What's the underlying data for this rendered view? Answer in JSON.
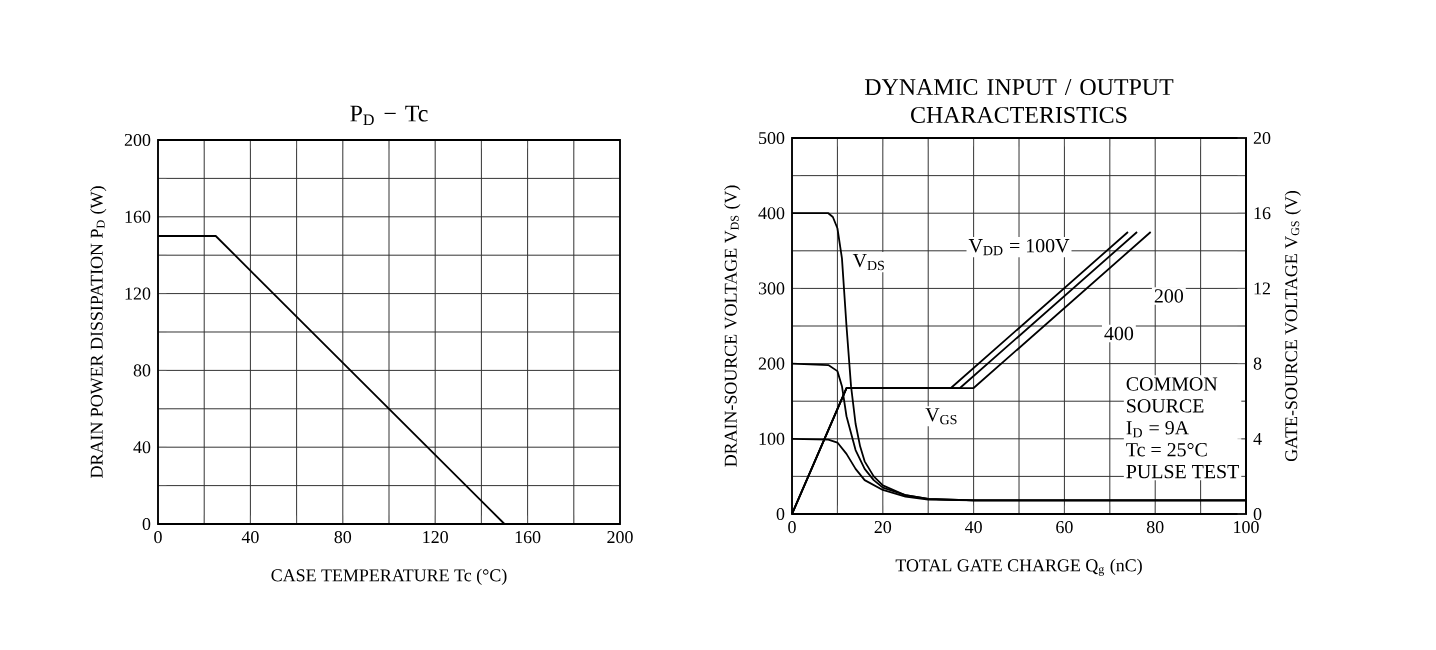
{
  "chart_data": [
    {
      "type": "line",
      "title": "P$_{D}$ − Tc",
      "xlabel": "CASE TEMPERATURE  Tc  (°C)",
      "ylabel": "DRAIN POWER DISSIPATION  P$_{D}$  (W)",
      "series": [
        {
          "color": "#000000",
          "x": [
            0,
            25,
            150
          ],
          "values": [
            150,
            150,
            0
          ]
        }
      ],
      "xlim": [
        0,
        200
      ],
      "ylim": [
        0,
        200
      ],
      "xticks": [
        0,
        {
          "value": 20,
          "label": null
        },
        40,
        {
          "value": 60,
          "label": null
        },
        80,
        {
          "value": 100,
          "label": null
        },
        120,
        {
          "value": 140,
          "label": null
        },
        160,
        {
          "value": 180,
          "label": null
        },
        200
      ],
      "yticks": [
        0,
        {
          "value": 20,
          "label": null
        },
        40,
        {
          "value": 60,
          "label": null
        },
        80,
        {
          "value": 100,
          "label": null
        },
        120,
        {
          "value": 140,
          "label": null
        },
        160,
        {
          "value": 180,
          "label": null
        },
        200
      ],
      "grid": true,
      "marker": "none"
    },
    {
      "type": "line",
      "title": "DYNAMIC INPUT / OUTPUT CHARACTERISTICS",
      "xlabel": "TOTAL GATE CHARGE  Q$_{g}$  (nC)",
      "ylabel": "DRAIN-SOURCE VOLTAGE  V$_{DS}$  (V)",
      "y2label": "GATE-SOURCE VOLTAGE  V$_{GS}$  (V)",
      "series": [
        {
          "color": "#000000",
          "x": [
            0,
            8,
            9,
            10,
            11,
            12,
            13,
            14,
            15,
            16,
            18,
            20,
            25,
            30,
            40,
            100
          ],
          "values": [
            400,
            400,
            395,
            380,
            340,
            250,
            170,
            120,
            90,
            70,
            50,
            38,
            25,
            20,
            18,
            18
          ]
        },
        {
          "color": "#000000",
          "x": [
            0,
            8,
            10,
            11,
            12,
            14,
            16,
            18,
            20,
            25,
            30,
            40,
            100
          ],
          "values": [
            200,
            198,
            190,
            170,
            130,
            85,
            60,
            45,
            35,
            25,
            20,
            18,
            18
          ]
        },
        {
          "color": "#000000",
          "x": [
            0,
            8,
            10,
            12,
            14,
            16,
            20,
            25,
            30,
            40,
            100
          ],
          "values": [
            100,
            99,
            95,
            80,
            60,
            45,
            32,
            23,
            19,
            18,
            18
          ]
        },
        {
          "color": "#000000",
          "axis": "y2",
          "x": [
            0,
            12,
            35,
            74
          ],
          "values": [
            0,
            6.7,
            6.7,
            15
          ]
        },
        {
          "color": "#000000",
          "axis": "y2",
          "x": [
            0,
            12,
            37,
            76
          ],
          "values": [
            0,
            6.7,
            6.7,
            15
          ]
        },
        {
          "color": "#000000",
          "axis": "y2",
          "x": [
            0,
            12,
            40,
            79
          ],
          "values": [
            0,
            6.7,
            6.7,
            15
          ]
        }
      ],
      "xlim": [
        0,
        100
      ],
      "ylim": [
        0,
        500
      ],
      "y2lim": [
        0,
        20
      ],
      "xticks": [
        0,
        {
          "value": 10,
          "label": null
        },
        20,
        {
          "value": 30,
          "label": null
        },
        40,
        {
          "value": 50,
          "label": null
        },
        60,
        {
          "value": 70,
          "label": null
        },
        80,
        {
          "value": 90,
          "label": null
        },
        100
      ],
      "yticks": [
        0,
        {
          "value": 50,
          "label": null
        },
        100,
        {
          "value": 150,
          "label": null
        },
        200,
        {
          "value": 250,
          "label": null
        },
        300,
        {
          "value": 350,
          "label": null
        },
        400,
        {
          "value": 450,
          "label": null
        },
        500
      ],
      "y2ticks": [
        0,
        4,
        8,
        12,
        16,
        20
      ],
      "grid": true,
      "marker": "none",
      "annotations": [
        {
          "text": "V$_{DS}$",
          "x": 17,
          "y": 335
        },
        {
          "text": "V$_{GS}$",
          "x": 33,
          "y": 130
        },
        "V$_{DD}$ = 100V",
        {
          "text": "200",
          "x": 83,
          "y": 290
        },
        {
          "text": "400",
          "x": 72,
          "y": 240
        },
        "COMMON",
        "SOURCE",
        "I$_{D}$ = 9A",
        "Tc = 25°C",
        "PULSE TEST"
      ]
    }
  ]
}
